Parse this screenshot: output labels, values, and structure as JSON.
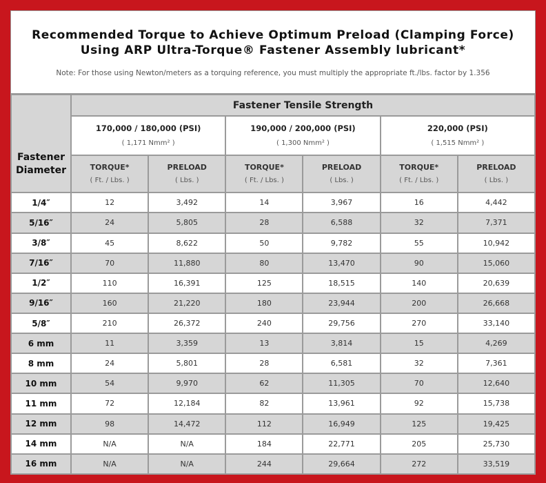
{
  "header": {
    "title_line1": "Recommended Torque to Achieve Optimum Preload (Clamping Force)",
    "title_line2": "Using ARP Ultra-Torque® Fastener Assembly lubricant*",
    "note": "Note: For those using Newton/meters as a torquing reference, you must multiply the appropriate ft./lbs. factor by 1.356"
  },
  "table": {
    "span_header": "Fastener Tensile Strength",
    "diameter_label": "Fastener Diameter",
    "groups": [
      {
        "label": "170,000 / 180,000 (PSI)",
        "sub": "( 1,171 Nmm² )"
      },
      {
        "label": "190,000 / 200,000 (PSI)",
        "sub": "( 1,300 Nmm² )"
      },
      {
        "label": "220,000 (PSI)",
        "sub": "( 1,515 Nmm² )"
      }
    ],
    "columns": [
      {
        "label": "TORQUE*",
        "unit": "( Ft. / Lbs. )"
      },
      {
        "label": "PRELOAD",
        "unit": "( Lbs. )"
      },
      {
        "label": "TORQUE*",
        "unit": "( Ft. / Lbs. )"
      },
      {
        "label": "PRELOAD",
        "unit": "( Lbs. )"
      },
      {
        "label": "TORQUE*",
        "unit": "( Ft. / Lbs. )"
      },
      {
        "label": "PRELOAD",
        "unit": "( Lbs. )"
      }
    ],
    "rows": [
      {
        "diameter": "1/4″",
        "cells": [
          "12",
          "3,492",
          "14",
          "3,967",
          "16",
          "4,442"
        ]
      },
      {
        "diameter": "5/16″",
        "cells": [
          "24",
          "5,805",
          "28",
          "6,588",
          "32",
          "7,371"
        ]
      },
      {
        "diameter": "3/8″",
        "cells": [
          "45",
          "8,622",
          "50",
          "9,782",
          "55",
          "10,942"
        ]
      },
      {
        "diameter": "7/16″",
        "cells": [
          "70",
          "11,880",
          "80",
          "13,470",
          "90",
          "15,060"
        ]
      },
      {
        "diameter": "1/2″",
        "cells": [
          "110",
          "16,391",
          "125",
          "18,515",
          "140",
          "20,639"
        ]
      },
      {
        "diameter": "9/16″",
        "cells": [
          "160",
          "21,220",
          "180",
          "23,944",
          "200",
          "26,668"
        ]
      },
      {
        "diameter": "5/8″",
        "cells": [
          "210",
          "26,372",
          "240",
          "29,756",
          "270",
          "33,140"
        ]
      },
      {
        "diameter": "6 mm",
        "cells": [
          "11",
          "3,359",
          "13",
          "3,814",
          "15",
          "4,269"
        ]
      },
      {
        "diameter": "8 mm",
        "cells": [
          "24",
          "5,801",
          "28",
          "6,581",
          "32",
          "7,361"
        ]
      },
      {
        "diameter": "10 mm",
        "cells": [
          "54",
          "9,970",
          "62",
          "11,305",
          "70",
          "12,640"
        ]
      },
      {
        "diameter": "11 mm",
        "cells": [
          "72",
          "12,184",
          "82",
          "13,961",
          "92",
          "15,738"
        ]
      },
      {
        "diameter": "12 mm",
        "cells": [
          "98",
          "14,472",
          "112",
          "16,949",
          "125",
          "19,425"
        ]
      },
      {
        "diameter": "14 mm",
        "cells": [
          "N/A",
          "N/A",
          "184",
          "22,771",
          "205",
          "25,730"
        ]
      },
      {
        "diameter": "16 mm",
        "cells": [
          "N/A",
          "N/A",
          "244",
          "29,664",
          "272",
          "33,519"
        ]
      }
    ]
  }
}
